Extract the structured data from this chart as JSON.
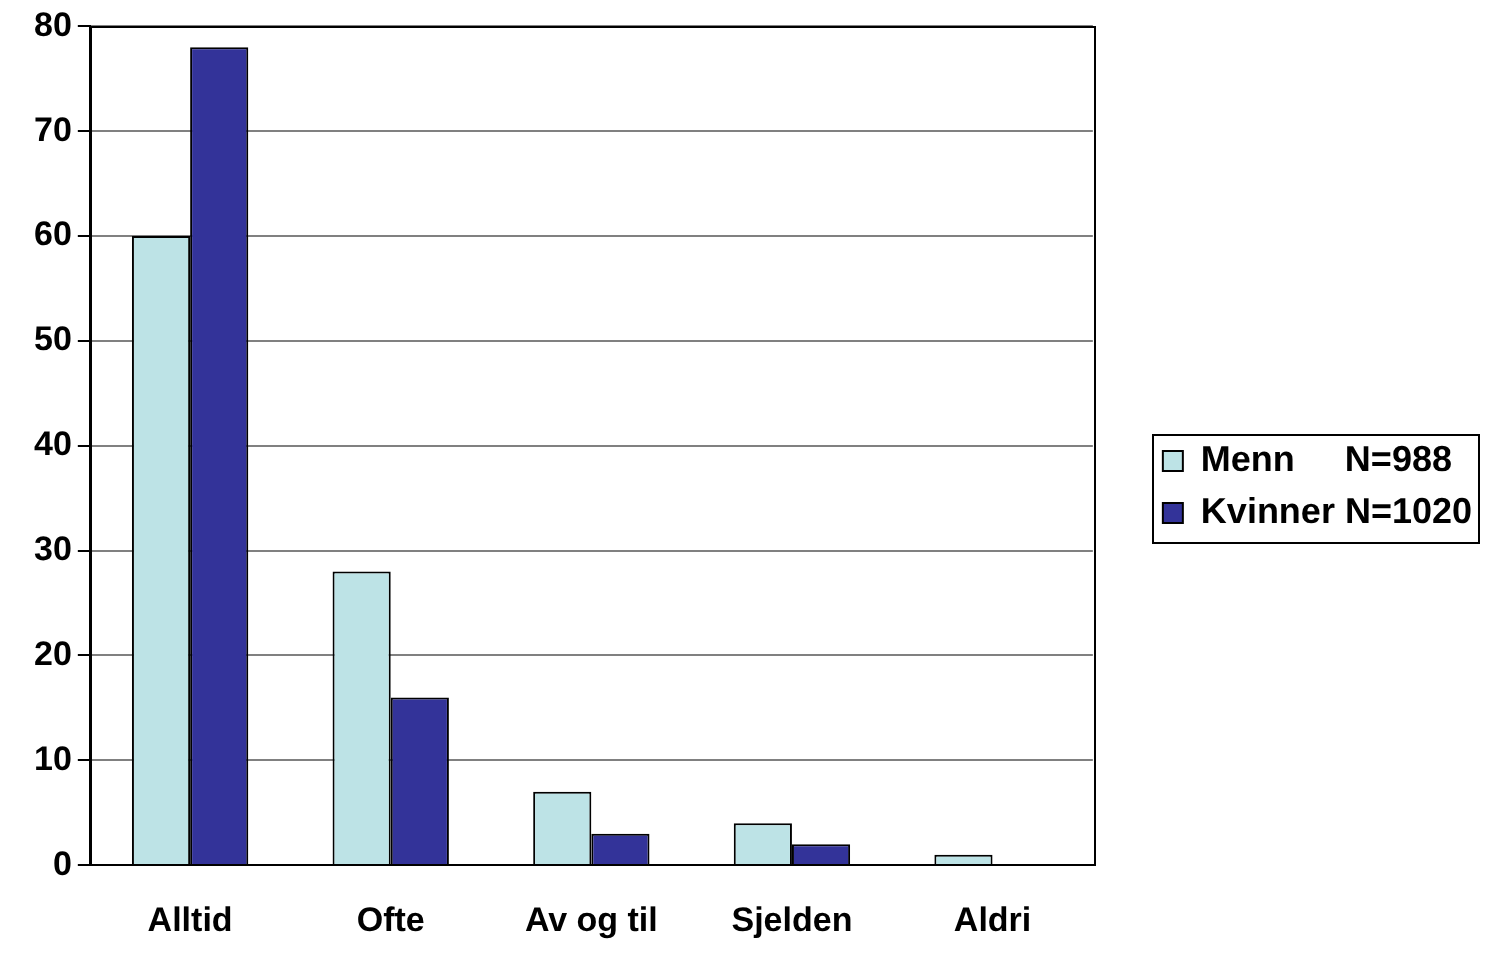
{
  "chart_data": {
    "type": "bar",
    "categories": [
      "Alltid",
      "Ofte",
      "Av og til",
      "Sjelden",
      "Aldri"
    ],
    "series": [
      {
        "name": "Menn     N=988",
        "color": "#bde3e6",
        "values": [
          60,
          28,
          7,
          4,
          1
        ]
      },
      {
        "name": "Kvinner N=1020",
        "color": "#333399",
        "values": [
          78,
          16,
          3,
          2,
          0
        ]
      }
    ],
    "ylim": [
      0,
      80
    ],
    "yticks": [
      0,
      10,
      20,
      30,
      40,
      50,
      60,
      70,
      80
    ],
    "grid": "y",
    "legend": "right"
  }
}
